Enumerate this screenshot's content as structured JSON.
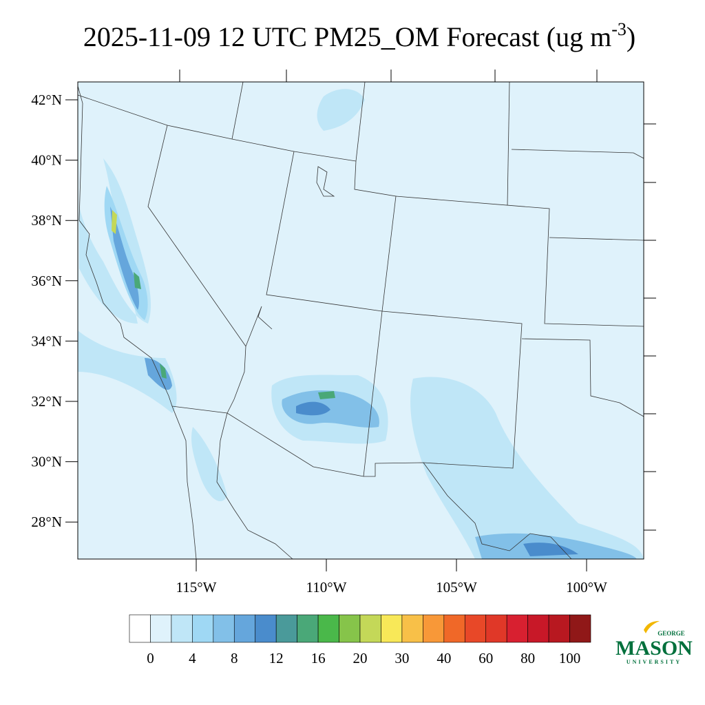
{
  "title": "2025-11-09 12 UTC PM25_OM Forecast (ug m",
  "title_superscript": "-3",
  "title_end": ")",
  "map": {
    "lat_labels": [
      {
        "value": 42,
        "label": "42°N"
      },
      {
        "value": 40,
        "label": "40°N"
      },
      {
        "value": 38,
        "label": "38°N"
      },
      {
        "value": 36,
        "label": "36°N"
      },
      {
        "value": 34,
        "label": "34°N"
      },
      {
        "value": 32,
        "label": "32°N"
      },
      {
        "value": 30,
        "label": "30°N"
      },
      {
        "value": 28,
        "label": "28°N"
      }
    ],
    "lon_labels": [
      {
        "value": -115,
        "label": "115°W"
      },
      {
        "value": -110,
        "label": "110°W"
      },
      {
        "value": -105,
        "label": "105°W"
      },
      {
        "value": -100,
        "label": "100°W"
      }
    ]
  },
  "colorbar": {
    "colors": [
      "#ffffff",
      "#dff2fb",
      "#bfe6f7",
      "#9fd8f4",
      "#82c0e8",
      "#65a6dc",
      "#4a8ccc",
      "#4a9a9a",
      "#4aa878",
      "#4ab84a",
      "#86c44a",
      "#c4d858",
      "#f8e858",
      "#f8c048",
      "#f89838",
      "#f06828",
      "#e84828",
      "#e03828",
      "#d82030",
      "#c81828",
      "#b81820",
      "#901818"
    ],
    "labels": [
      0,
      4,
      8,
      12,
      16,
      20,
      30,
      40,
      60,
      80,
      100
    ]
  },
  "logo": {
    "top": "GEORGE",
    "main": "MASON",
    "bottom": "UNIVERSITY"
  }
}
